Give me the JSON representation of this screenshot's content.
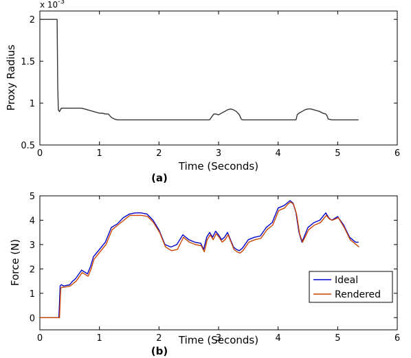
{
  "chart_data": [
    {
      "type": "line",
      "subplot_label": "(a)",
      "xlabel": "Time (Seconds)",
      "ylabel": "Proxy Radius",
      "y_scale_factor_text": "x 10",
      "y_scale_exponent_text": "-3",
      "xlim": [
        0,
        6
      ],
      "ylim": [
        0.5,
        2.1
      ],
      "xticks": [
        "0",
        "1",
        "2",
        "3",
        "4",
        "5",
        "6"
      ],
      "yticks": [
        "0.5",
        "1",
        "1.5",
        "2"
      ],
      "grid": false,
      "series": [
        {
          "color": "#333333",
          "x": [
            0,
            0.29,
            0.3,
            0.31,
            0.33,
            0.36,
            0.4,
            0.5,
            0.6,
            0.7,
            0.75,
            0.8,
            0.85,
            0.9,
            0.95,
            1.0,
            1.05,
            1.1,
            1.15,
            1.2,
            1.25,
            1.3,
            1.5,
            2.0,
            2.5,
            2.85,
            2.9,
            2.92,
            2.95,
            3.0,
            3.05,
            3.1,
            3.15,
            3.2,
            3.25,
            3.3,
            3.35,
            3.38,
            3.4,
            3.5,
            4.0,
            4.3,
            4.32,
            4.35,
            4.4,
            4.45,
            4.5,
            4.55,
            4.6,
            4.65,
            4.7,
            4.75,
            4.8,
            4.82,
            4.84,
            4.9,
            5.0,
            5.35
          ],
          "y": [
            2.0,
            2.0,
            1.2,
            0.92,
            0.9,
            0.94,
            0.94,
            0.94,
            0.94,
            0.94,
            0.93,
            0.92,
            0.91,
            0.9,
            0.89,
            0.88,
            0.88,
            0.87,
            0.87,
            0.83,
            0.81,
            0.8,
            0.8,
            0.8,
            0.8,
            0.8,
            0.85,
            0.87,
            0.87,
            0.86,
            0.88,
            0.9,
            0.92,
            0.93,
            0.92,
            0.9,
            0.86,
            0.81,
            0.8,
            0.8,
            0.8,
            0.8,
            0.86,
            0.88,
            0.9,
            0.92,
            0.93,
            0.93,
            0.92,
            0.91,
            0.9,
            0.88,
            0.87,
            0.85,
            0.81,
            0.8,
            0.8,
            0.8
          ]
        }
      ]
    },
    {
      "type": "line",
      "subplot_label": "(b)",
      "xlabel": "Time (Seconds)",
      "ylabel": "Force (N)",
      "xlim": [
        0,
        6
      ],
      "ylim": [
        -0.5,
        5
      ],
      "xticks": [
        "0",
        "1",
        "2",
        "3",
        "4",
        "5",
        "6"
      ],
      "yticks": [
        "0",
        "1",
        "2",
        "3",
        "4",
        "5"
      ],
      "grid": false,
      "legend_position": "lower-right",
      "series": [
        {
          "name": "Ideal",
          "color": "#0000cc",
          "x": [
            0,
            0.32,
            0.34,
            0.36,
            0.4,
            0.5,
            0.55,
            0.6,
            0.7,
            0.8,
            0.85,
            0.9,
            1.0,
            1.1,
            1.2,
            1.3,
            1.4,
            1.5,
            1.6,
            1.7,
            1.8,
            1.9,
            2.0,
            2.1,
            2.2,
            2.3,
            2.4,
            2.5,
            2.6,
            2.7,
            2.75,
            2.8,
            2.85,
            2.9,
            2.95,
            3.0,
            3.05,
            3.1,
            3.15,
            3.2,
            3.25,
            3.3,
            3.35,
            3.4,
            3.5,
            3.6,
            3.7,
            3.8,
            3.9,
            4.0,
            4.1,
            4.15,
            4.2,
            4.25,
            4.3,
            4.35,
            4.4,
            4.5,
            4.6,
            4.7,
            4.8,
            4.85,
            4.9,
            5.0,
            5.1,
            5.2,
            5.3,
            5.35
          ],
          "y": [
            0,
            0,
            1.3,
            1.35,
            1.3,
            1.35,
            1.5,
            1.6,
            1.95,
            1.8,
            2.1,
            2.5,
            2.8,
            3.1,
            3.7,
            3.85,
            4.1,
            4.25,
            4.3,
            4.3,
            4.25,
            4.0,
            3.6,
            3.0,
            2.9,
            3.0,
            3.4,
            3.2,
            3.1,
            3.05,
            2.8,
            3.3,
            3.5,
            3.3,
            3.55,
            3.4,
            3.2,
            3.3,
            3.5,
            3.2,
            2.9,
            2.8,
            2.75,
            2.85,
            3.2,
            3.3,
            3.35,
            3.7,
            3.9,
            4.5,
            4.6,
            4.7,
            4.8,
            4.7,
            4.3,
            3.5,
            3.1,
            3.7,
            3.9,
            4.0,
            4.3,
            4.1,
            4.0,
            4.15,
            3.8,
            3.3,
            3.1,
            3.1
          ]
        },
        {
          "name": "Rendered",
          "color": "#cc4400",
          "x": [
            0,
            0.33,
            0.35,
            0.37,
            0.41,
            0.51,
            0.56,
            0.61,
            0.71,
            0.81,
            0.86,
            0.91,
            1.01,
            1.11,
            1.21,
            1.31,
            1.41,
            1.51,
            1.61,
            1.71,
            1.81,
            1.91,
            2.01,
            2.11,
            2.21,
            2.31,
            2.41,
            2.51,
            2.61,
            2.71,
            2.76,
            2.81,
            2.86,
            2.91,
            2.96,
            3.01,
            3.06,
            3.11,
            3.16,
            3.21,
            3.26,
            3.31,
            3.36,
            3.41,
            3.51,
            3.61,
            3.71,
            3.81,
            3.91,
            4.01,
            4.11,
            4.16,
            4.21,
            4.26,
            4.31,
            4.36,
            4.41,
            4.51,
            4.61,
            4.71,
            4.81,
            4.86,
            4.91,
            5.01,
            5.11,
            5.21,
            5.31,
            5.36
          ],
          "y": [
            0,
            0,
            1.2,
            1.25,
            1.25,
            1.3,
            1.4,
            1.5,
            1.85,
            1.7,
            2.0,
            2.4,
            2.7,
            3.0,
            3.6,
            3.8,
            4.0,
            4.2,
            4.2,
            4.2,
            4.15,
            3.9,
            3.5,
            2.9,
            2.75,
            2.8,
            3.3,
            3.1,
            3.0,
            2.95,
            2.7,
            3.2,
            3.4,
            3.2,
            3.45,
            3.3,
            3.1,
            3.2,
            3.4,
            3.1,
            2.8,
            2.7,
            2.65,
            2.75,
            3.1,
            3.2,
            3.25,
            3.6,
            3.8,
            4.4,
            4.5,
            4.65,
            4.75,
            4.65,
            4.25,
            3.45,
            3.1,
            3.6,
            3.8,
            3.9,
            4.2,
            4.05,
            4.0,
            4.1,
            3.7,
            3.2,
            3.0,
            2.9
          ]
        }
      ]
    }
  ]
}
